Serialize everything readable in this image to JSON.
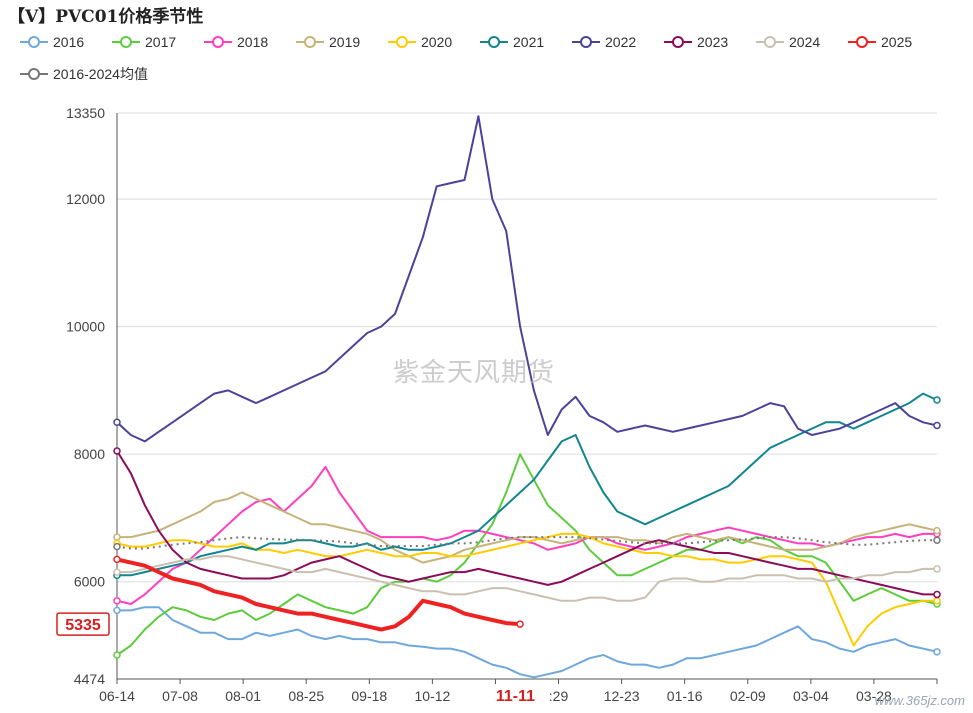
{
  "title": "【V】PVC01价格季节性",
  "watermark": "紫金天风期货",
  "corner_mark": "www.365jz.com",
  "legend": [
    {
      "name": "2016",
      "color": "#6fa8dc"
    },
    {
      "name": "2017",
      "color": "#5ccc3c"
    },
    {
      "name": "2018",
      "color": "#ff3fbf"
    },
    {
      "name": "2019",
      "color": "#c7b27a"
    },
    {
      "name": "2020",
      "color": "#ffcc00"
    },
    {
      "name": "2021",
      "color": "#11868f"
    },
    {
      "name": "2022",
      "color": "#4b4399"
    },
    {
      "name": "2023",
      "color": "#8c0a5a"
    },
    {
      "name": "2024",
      "color": "#cbbfaf"
    },
    {
      "name": "2025",
      "color": "#ee2222"
    },
    {
      "name": "2016-2024均值",
      "color": "#777777"
    }
  ],
  "chart_data": {
    "type": "line",
    "title": "【V】PVC01价格季节性",
    "x_ticks": [
      "06-14",
      "07-08",
      "08-01",
      "08-25",
      "09-18",
      "10-12",
      "11-11",
      "12-23",
      "01-16",
      "02-09",
      "03-04",
      "03-28"
    ],
    "highlight_tick": "11-11",
    "partial_tick": ":29",
    "y_ticks": [
      4474,
      6000,
      8000,
      10000,
      12000,
      13350
    ],
    "ylim": [
      4474,
      13350
    ],
    "current_value_label": "5335",
    "series": [
      {
        "name": "2016",
        "color": "#6fa8dc",
        "y": [
          5550,
          5550,
          5600,
          5600,
          5400,
          5300,
          5200,
          5200,
          5100,
          5100,
          5200,
          5150,
          5200,
          5250,
          5150,
          5100,
          5150,
          5100,
          5100,
          5050,
          5050,
          5000,
          4980,
          4950,
          4950,
          4900,
          4800,
          4700,
          4650,
          4550,
          4500,
          4550,
          4600,
          4700,
          4800,
          4850,
          4750,
          4700,
          4700,
          4650,
          4700,
          4800,
          4800,
          4850,
          4900,
          4950,
          5000,
          5100,
          5200,
          5300,
          5100,
          5050,
          4950,
          4900,
          5000,
          5050,
          5100,
          5000,
          4950,
          4900
        ]
      },
      {
        "name": "2017",
        "color": "#5ccc3c",
        "y": [
          4850,
          5000,
          5250,
          5450,
          5600,
          5550,
          5450,
          5400,
          5500,
          5550,
          5400,
          5500,
          5650,
          5800,
          5700,
          5600,
          5550,
          5500,
          5600,
          5900,
          6000,
          6000,
          6050,
          6000,
          6100,
          6300,
          6600,
          6900,
          7400,
          8000,
          7600,
          7200,
          7000,
          6800,
          6500,
          6300,
          6100,
          6100,
          6200,
          6300,
          6400,
          6500,
          6500,
          6600,
          6700,
          6600,
          6700,
          6650,
          6500,
          6400,
          6400,
          6300,
          6000,
          5700,
          5800,
          5900,
          5800,
          5700,
          5700,
          5650
        ]
      },
      {
        "name": "2018",
        "color": "#ff3fbf",
        "y": [
          5700,
          5650,
          5800,
          6000,
          6200,
          6300,
          6500,
          6700,
          6900,
          7100,
          7250,
          7300,
          7100,
          7300,
          7500,
          7800,
          7400,
          7100,
          6800,
          6700,
          6700,
          6700,
          6700,
          6650,
          6700,
          6800,
          6800,
          6750,
          6700,
          6650,
          6600,
          6500,
          6550,
          6600,
          6700,
          6700,
          6600,
          6550,
          6500,
          6550,
          6600,
          6700,
          6750,
          6800,
          6850,
          6800,
          6750,
          6700,
          6650,
          6600,
          6600,
          6550,
          6600,
          6650,
          6700,
          6700,
          6750,
          6700,
          6750,
          6750
        ]
      },
      {
        "name": "2019",
        "color": "#c7b27a",
        "y": [
          6700,
          6700,
          6750,
          6800,
          6900,
          7000,
          7100,
          7250,
          7300,
          7400,
          7300,
          7200,
          7100,
          7000,
          6900,
          6900,
          6850,
          6800,
          6750,
          6650,
          6500,
          6400,
          6300,
          6350,
          6400,
          6500,
          6550,
          6600,
          6650,
          6700,
          6700,
          6650,
          6600,
          6650,
          6700,
          6700,
          6700,
          6650,
          6650,
          6600,
          6700,
          6750,
          6700,
          6650,
          6700,
          6650,
          6600,
          6550,
          6500,
          6500,
          6500,
          6550,
          6600,
          6700,
          6750,
          6800,
          6850,
          6900,
          6850,
          6800
        ]
      },
      {
        "name": "2020",
        "color": "#ffcc00",
        "y": [
          6600,
          6550,
          6550,
          6600,
          6650,
          6650,
          6600,
          6550,
          6550,
          6600,
          6500,
          6500,
          6450,
          6500,
          6450,
          6400,
          6400,
          6450,
          6500,
          6450,
          6400,
          6400,
          6450,
          6450,
          6400,
          6400,
          6450,
          6500,
          6550,
          6600,
          6650,
          6700,
          6750,
          6750,
          6700,
          6600,
          6550,
          6500,
          6450,
          6450,
          6400,
          6400,
          6350,
          6350,
          6300,
          6300,
          6350,
          6400,
          6400,
          6350,
          6300,
          6000,
          5500,
          5000,
          5300,
          5500,
          5600,
          5650,
          5700,
          5700
        ]
      },
      {
        "name": "2021",
        "color": "#11868f",
        "y": [
          6100,
          6100,
          6150,
          6200,
          6250,
          6300,
          6400,
          6450,
          6500,
          6550,
          6500,
          6600,
          6600,
          6650,
          6650,
          6600,
          6550,
          6550,
          6600,
          6500,
          6550,
          6500,
          6500,
          6550,
          6600,
          6700,
          6800,
          7000,
          7200,
          7400,
          7600,
          7900,
          8200,
          8300,
          7800,
          7400,
          7100,
          7000,
          6900,
          7000,
          7100,
          7200,
          7300,
          7400,
          7500,
          7700,
          7900,
          8100,
          8200,
          8300,
          8400,
          8500,
          8500,
          8400,
          8500,
          8600,
          8700,
          8800,
          8950,
          8850
        ]
      },
      {
        "name": "2022",
        "color": "#4b4399",
        "y": [
          8500,
          8300,
          8200,
          8350,
          8500,
          8650,
          8800,
          8950,
          9000,
          8900,
          8800,
          8900,
          9000,
          9100,
          9200,
          9300,
          9500,
          9700,
          9900,
          10000,
          10200,
          10800,
          11400,
          12200,
          12250,
          12300,
          13300,
          12000,
          11500,
          10000,
          9000,
          8300,
          8700,
          8900,
          8600,
          8500,
          8350,
          8400,
          8450,
          8400,
          8350,
          8400,
          8450,
          8500,
          8550,
          8600,
          8700,
          8800,
          8750,
          8400,
          8300,
          8350,
          8400,
          8500,
          8600,
          8700,
          8800,
          8600,
          8500,
          8450
        ]
      },
      {
        "name": "2023",
        "color": "#8c0a5a",
        "y": [
          8050,
          7700,
          7200,
          6800,
          6500,
          6300,
          6200,
          6150,
          6100,
          6050,
          6050,
          6050,
          6100,
          6200,
          6300,
          6350,
          6400,
          6300,
          6200,
          6100,
          6050,
          6000,
          6050,
          6100,
          6150,
          6150,
          6200,
          6150,
          6100,
          6050,
          6000,
          5950,
          6000,
          6100,
          6200,
          6300,
          6400,
          6500,
          6600,
          6650,
          6600,
          6550,
          6500,
          6450,
          6450,
          6400,
          6350,
          6300,
          6250,
          6200,
          6200,
          6150,
          6100,
          6050,
          6000,
          5950,
          5900,
          5850,
          5800,
          5800
        ]
      },
      {
        "name": "2024",
        "color": "#cbbfaf",
        "y": [
          6150,
          6150,
          6200,
          6250,
          6300,
          6350,
          6350,
          6400,
          6400,
          6350,
          6300,
          6250,
          6200,
          6150,
          6150,
          6200,
          6150,
          6100,
          6050,
          6000,
          5950,
          5900,
          5850,
          5850,
          5800,
          5800,
          5850,
          5900,
          5900,
          5850,
          5800,
          5750,
          5700,
          5700,
          5750,
          5750,
          5700,
          5700,
          5750,
          6000,
          6050,
          6050,
          6000,
          6000,
          6050,
          6050,
          6100,
          6100,
          6100,
          6050,
          6050,
          6000,
          6050,
          6050,
          6100,
          6100,
          6150,
          6150,
          6200,
          6200
        ]
      },
      {
        "name": "2025",
        "color": "#ee2222",
        "y": [
          6350,
          6300,
          6250,
          6150,
          6050,
          6000,
          5950,
          5850,
          5800,
          5750,
          5650,
          5600,
          5550,
          5500,
          5500,
          5450,
          5400,
          5350,
          5300,
          5250,
          5300,
          5450,
          5700,
          5650,
          5600,
          5500,
          5450,
          5400,
          5350,
          5335
        ]
      },
      {
        "name": "2016-2024均值",
        "color": "#777777",
        "dashed": true,
        "y": [
          6550,
          6520,
          6520,
          6550,
          6580,
          6600,
          6620,
          6650,
          6680,
          6700,
          6680,
          6670,
          6660,
          6660,
          6650,
          6640,
          6630,
          6600,
          6580,
          6560,
          6560,
          6560,
          6560,
          6580,
          6600,
          6600,
          6620,
          6650,
          6680,
          6700,
          6700,
          6700,
          6700,
          6700,
          6680,
          6660,
          6640,
          6620,
          6600,
          6600,
          6600,
          6600,
          6620,
          6640,
          6650,
          6660,
          6680,
          6700,
          6700,
          6680,
          6650,
          6620,
          6600,
          6580,
          6580,
          6600,
          6620,
          6640,
          6650,
          6650
        ]
      }
    ]
  }
}
